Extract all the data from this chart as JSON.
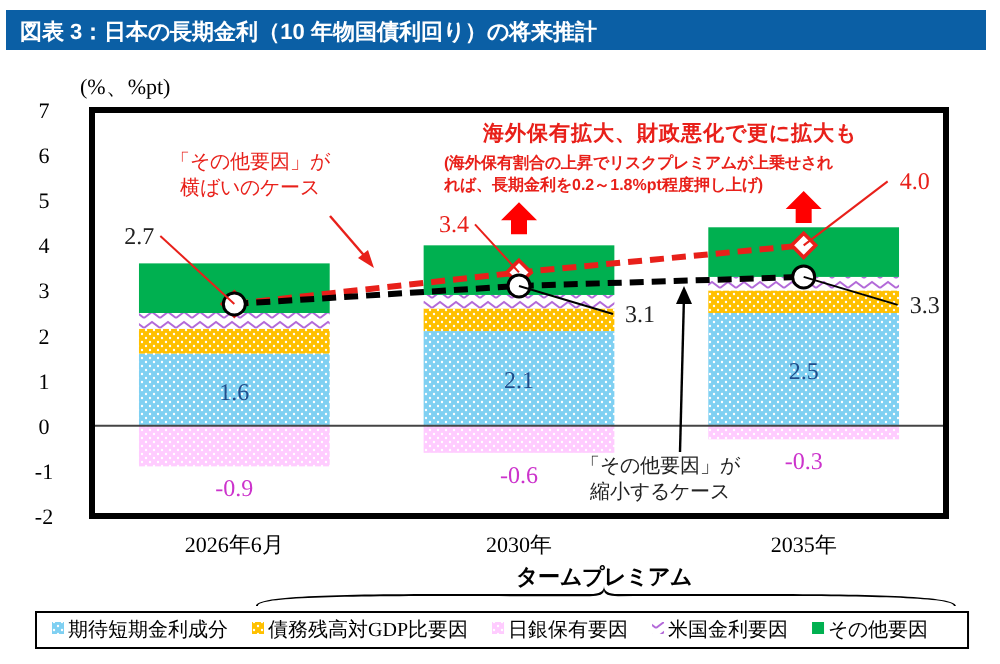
{
  "chart_data": {
    "type": "bar",
    "stacked": true,
    "title": "図表 3：日本の長期金利（10 年物国債利回り）の将来推計",
    "ylabel": "(%、%pt)",
    "categories": [
      "2026年6月",
      "2030年",
      "2035年"
    ],
    "ylim": [
      -2,
      7
    ],
    "yticks": [
      -2,
      -1,
      0,
      1,
      2,
      3,
      4,
      5,
      6,
      7
    ],
    "legend": "bottom",
    "series": [
      {
        "name": "期待短期金利成分",
        "color": "#7fd0f2",
        "values": [
          1.6,
          2.1,
          2.5
        ],
        "value_labels": [
          "1.6",
          "2.1",
          "2.5"
        ]
      },
      {
        "name": "債務残高対GDP比要因",
        "color": "#ffc000",
        "values": [
          0.55,
          0.5,
          0.5
        ]
      },
      {
        "name": "日銀保有要因",
        "color": "#ffccff",
        "values": [
          -0.9,
          -0.6,
          -0.3
        ],
        "value_labels": [
          "-0.9",
          "-0.6",
          "-0.3"
        ]
      },
      {
        "name": "米国金利要因",
        "color": "#b36ad9",
        "values": [
          0.35,
          0.3,
          0.3
        ]
      },
      {
        "name": "その他要因",
        "color": "#00b050",
        "values": [
          1.1,
          1.1,
          1.1
        ]
      },
      {
        "type": "line",
        "color": "#e8201a",
        "values": [
          2.7,
          3.4,
          4.0
        ],
        "marker": "diamond",
        "line_style": "dashed",
        "value_labels": [
          "2.7",
          "3.4",
          "4.0"
        ]
      },
      {
        "type": "line",
        "color": "#000000",
        "values": [
          2.7,
          3.1,
          3.3
        ],
        "marker": "circle",
        "line_style": "dashed",
        "value_labels": [
          null,
          "3.1",
          "3.3"
        ]
      }
    ],
    "annotations": [
      "海外保有拡大、財政悪化で更に拡大も",
      "(海外保有割合の上昇でリスクプレミアムが上乗せされれば、長期金利を0.2～1.8%pt程度押し上げ)",
      "「その他要因」が横ばいのケース",
      "「その他要因」が縮小するケース",
      "タームプレミアム"
    ]
  }
}
